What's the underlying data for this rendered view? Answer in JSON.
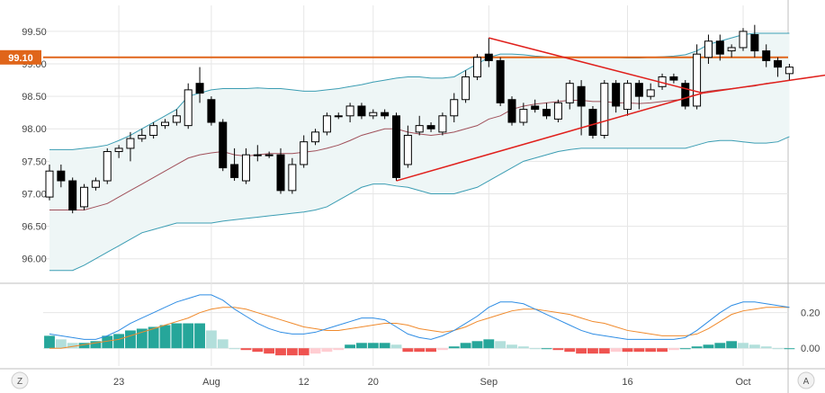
{
  "chart_data": [
    {
      "type": "candlestick",
      "x_ticks": [
        {
          "label": "23",
          "index": 6
        },
        {
          "label": "Aug",
          "index": 14
        },
        {
          "label": "12",
          "index": 22
        },
        {
          "label": "20",
          "index": 28
        },
        {
          "label": "Sep",
          "index": 38
        },
        {
          "label": "16",
          "index": 50
        },
        {
          "label": "Oct",
          "index": 60
        }
      ],
      "y_ticks": [
        "99.50",
        "99.00",
        "98.50",
        "98.00",
        "97.50",
        "97.00",
        "96.50",
        "96.00"
      ],
      "y_tick_values": [
        99.5,
        99.0,
        98.5,
        98.0,
        97.5,
        97.0,
        96.5,
        96.0
      ],
      "ylim": [
        95.65,
        99.9
      ],
      "current_price_label": "99.10",
      "horizontal_level": 99.1,
      "candles": [
        [
          96.95,
          97.35,
          97.45,
          96.9
        ],
        [
          97.35,
          97.2,
          97.45,
          97.1
        ],
        [
          97.2,
          96.75,
          97.25,
          96.7
        ],
        [
          96.8,
          97.1,
          97.15,
          96.75
        ],
        [
          97.1,
          97.2,
          97.25,
          97.05
        ],
        [
          97.2,
          97.65,
          97.7,
          97.15
        ],
        [
          97.65,
          97.7,
          97.75,
          97.55
        ],
        [
          97.7,
          97.85,
          97.95,
          97.5
        ],
        [
          97.85,
          97.9,
          98.0,
          97.8
        ],
        [
          97.9,
          98.05,
          98.1,
          97.85
        ],
        [
          98.05,
          98.1,
          98.15,
          98.0
        ],
        [
          98.1,
          98.2,
          98.3,
          98.05
        ],
        [
          98.05,
          98.6,
          98.7,
          98.0
        ],
        [
          98.7,
          98.55,
          98.95,
          98.4
        ],
        [
          98.45,
          98.1,
          98.5,
          98.05
        ],
        [
          98.1,
          97.4,
          98.15,
          97.35
        ],
        [
          97.45,
          97.25,
          97.7,
          97.2
        ],
        [
          97.2,
          97.6,
          97.7,
          97.15
        ],
        [
          97.6,
          97.6,
          97.75,
          97.5
        ],
        [
          97.6,
          97.6,
          97.65,
          97.55
        ],
        [
          97.6,
          97.05,
          97.7,
          97.0
        ],
        [
          97.05,
          97.45,
          97.55,
          97.0
        ],
        [
          97.45,
          97.8,
          97.9,
          97.4
        ],
        [
          97.8,
          97.95,
          98.0,
          97.75
        ],
        [
          97.95,
          98.2,
          98.25,
          97.9
        ],
        [
          98.2,
          98.2,
          98.25,
          98.15
        ],
        [
          98.2,
          98.35,
          98.4,
          98.1
        ],
        [
          98.35,
          98.2,
          98.4,
          98.15
        ],
        [
          98.2,
          98.25,
          98.3,
          98.15
        ],
        [
          98.25,
          98.2,
          98.3,
          98.15
        ],
        [
          98.2,
          97.25,
          98.25,
          97.2
        ],
        [
          97.45,
          97.9,
          98.05,
          97.4
        ],
        [
          97.95,
          98.05,
          98.2,
          97.9
        ],
        [
          98.05,
          98.0,
          98.1,
          97.95
        ],
        [
          97.95,
          98.2,
          98.25,
          97.9
        ],
        [
          98.2,
          98.45,
          98.55,
          98.1
        ],
        [
          98.45,
          98.8,
          98.9,
          98.4
        ],
        [
          98.8,
          99.1,
          99.15,
          98.75
        ],
        [
          99.15,
          99.05,
          99.4,
          98.95
        ],
        [
          99.05,
          98.4,
          99.1,
          98.35
        ],
        [
          98.45,
          98.1,
          98.5,
          98.05
        ],
        [
          98.1,
          98.3,
          98.4,
          98.05
        ],
        [
          98.35,
          98.3,
          98.45,
          98.25
        ],
        [
          98.3,
          98.2,
          98.4,
          98.15
        ],
        [
          98.15,
          98.4,
          98.45,
          98.1
        ],
        [
          98.4,
          98.7,
          98.75,
          98.3
        ],
        [
          98.65,
          98.35,
          98.75,
          97.9
        ],
        [
          98.3,
          97.9,
          98.35,
          97.85
        ],
        [
          97.9,
          98.7,
          98.75,
          97.85
        ],
        [
          98.7,
          98.35,
          98.75,
          98.25
        ],
        [
          98.3,
          98.7,
          98.75,
          98.2
        ],
        [
          98.7,
          98.5,
          98.75,
          98.3
        ],
        [
          98.5,
          98.6,
          98.7,
          98.45
        ],
        [
          98.65,
          98.8,
          98.85,
          98.6
        ],
        [
          98.8,
          98.75,
          98.85,
          98.7
        ],
        [
          98.7,
          98.35,
          98.75,
          98.3
        ],
        [
          98.35,
          99.15,
          99.3,
          98.3
        ],
        [
          99.1,
          99.35,
          99.45,
          99.0
        ],
        [
          99.35,
          99.15,
          99.45,
          99.05
        ],
        [
          99.2,
          99.25,
          99.3,
          99.1
        ],
        [
          99.25,
          99.5,
          99.55,
          99.2
        ],
        [
          99.45,
          99.2,
          99.6,
          99.1
        ],
        [
          99.2,
          99.05,
          99.3,
          98.95
        ],
        [
          99.05,
          98.95,
          99.1,
          98.8
        ],
        [
          98.85,
          98.95,
          99.0,
          98.75
        ]
      ],
      "bollinger": {
        "upper": [
          97.68,
          97.68,
          97.68,
          97.7,
          97.72,
          97.75,
          97.82,
          97.9,
          98.0,
          98.1,
          98.2,
          98.3,
          98.5,
          98.55,
          98.6,
          98.62,
          98.62,
          98.62,
          98.63,
          98.62,
          98.62,
          98.6,
          98.58,
          98.58,
          98.6,
          98.62,
          98.65,
          98.68,
          98.72,
          98.75,
          98.78,
          98.8,
          98.8,
          98.78,
          98.78,
          98.8,
          98.9,
          99.0,
          99.1,
          99.15,
          99.15,
          99.14,
          99.12,
          99.11,
          99.1,
          99.1,
          99.1,
          99.1,
          99.1,
          99.1,
          99.09,
          99.09,
          99.1,
          99.11,
          99.12,
          99.14,
          99.2,
          99.3,
          99.35,
          99.4,
          99.45,
          99.47,
          99.47,
          99.47,
          99.47
        ],
        "middle": [
          96.75,
          96.75,
          96.75,
          96.75,
          96.8,
          96.85,
          96.95,
          97.05,
          97.15,
          97.25,
          97.35,
          97.45,
          97.55,
          97.6,
          97.63,
          97.65,
          97.6,
          97.58,
          97.6,
          97.62,
          97.62,
          97.62,
          97.64,
          97.66,
          97.7,
          97.75,
          97.82,
          97.9,
          97.95,
          98.0,
          98.0,
          97.95,
          97.92,
          97.9,
          97.92,
          97.95,
          98.0,
          98.05,
          98.15,
          98.2,
          98.3,
          98.35,
          98.38,
          98.4,
          98.42,
          98.44,
          98.44,
          98.42,
          98.42,
          98.4,
          98.4,
          98.39,
          98.4,
          98.42,
          98.44,
          98.46,
          98.55,
          98.58,
          98.6,
          98.62,
          98.64,
          98.66,
          98.7,
          98.72,
          98.75
        ],
        "lower": [
          95.82,
          95.82,
          95.82,
          95.9,
          96.0,
          96.1,
          96.2,
          96.3,
          96.4,
          96.45,
          96.5,
          96.55,
          96.55,
          96.55,
          96.55,
          96.58,
          96.6,
          96.62,
          96.64,
          96.66,
          96.68,
          96.7,
          96.72,
          96.75,
          96.8,
          96.9,
          97.0,
          97.1,
          97.15,
          97.15,
          97.12,
          97.1,
          97.05,
          97.0,
          97.0,
          97.0,
          97.05,
          97.1,
          97.2,
          97.3,
          97.4,
          97.5,
          97.55,
          97.6,
          97.65,
          97.68,
          97.7,
          97.7,
          97.7,
          97.7,
          97.7,
          97.7,
          97.7,
          97.7,
          97.7,
          97.7,
          97.75,
          97.8,
          97.82,
          97.82,
          97.8,
          97.78,
          97.78,
          97.8,
          97.88
        ]
      },
      "annotations": {
        "triangle_upper": [
          [
            38,
            99.4
          ],
          [
            56.5,
            98.55
          ]
        ],
        "triangle_lower": [
          [
            30,
            97.2
          ],
          [
            56.5,
            98.55
          ]
        ],
        "support_extended": [
          [
            56.5,
            98.55
          ],
          [
            68,
            98.85
          ]
        ]
      }
    },
    {
      "type": "bar",
      "y_ticks": [
        "0.20",
        "0.00"
      ],
      "y_tick_values": [
        0.2,
        0.0
      ],
      "ylim": [
        -0.1,
        0.35
      ],
      "histogram": [
        0.07,
        0.05,
        0.03,
        0.03,
        0.04,
        0.07,
        0.08,
        0.1,
        0.11,
        0.12,
        0.13,
        0.14,
        0.14,
        0.14,
        0.1,
        0.05,
        0.0,
        -0.01,
        -0.02,
        -0.03,
        -0.04,
        -0.04,
        -0.04,
        -0.03,
        -0.02,
        -0.01,
        0.02,
        0.03,
        0.03,
        0.03,
        0.02,
        -0.02,
        -0.02,
        -0.02,
        -0.01,
        0.01,
        0.03,
        0.04,
        0.05,
        0.04,
        0.02,
        0.01,
        0.0,
        0.0,
        -0.01,
        -0.02,
        -0.03,
        -0.03,
        -0.03,
        -0.02,
        -0.02,
        -0.02,
        -0.02,
        -0.02,
        -0.01,
        0.0,
        0.01,
        0.02,
        0.03,
        0.04,
        0.03,
        0.02,
        0.01,
        0.0,
        0.0
      ],
      "macd_line": [
        0.08,
        0.07,
        0.06,
        0.05,
        0.05,
        0.07,
        0.1,
        0.14,
        0.17,
        0.2,
        0.23,
        0.26,
        0.28,
        0.3,
        0.3,
        0.27,
        0.22,
        0.18,
        0.14,
        0.11,
        0.09,
        0.08,
        0.08,
        0.09,
        0.11,
        0.13,
        0.15,
        0.17,
        0.17,
        0.16,
        0.12,
        0.08,
        0.06,
        0.05,
        0.07,
        0.1,
        0.14,
        0.18,
        0.23,
        0.26,
        0.26,
        0.25,
        0.22,
        0.19,
        0.16,
        0.13,
        0.1,
        0.08,
        0.07,
        0.06,
        0.05,
        0.05,
        0.05,
        0.05,
        0.05,
        0.06,
        0.1,
        0.15,
        0.2,
        0.24,
        0.26,
        0.26,
        0.25,
        0.24,
        0.23
      ],
      "signal_line": [
        0.0,
        0.0,
        0.01,
        0.02,
        0.03,
        0.04,
        0.05,
        0.07,
        0.09,
        0.11,
        0.13,
        0.15,
        0.17,
        0.2,
        0.22,
        0.23,
        0.23,
        0.22,
        0.2,
        0.18,
        0.16,
        0.14,
        0.12,
        0.11,
        0.1,
        0.1,
        0.11,
        0.12,
        0.13,
        0.14,
        0.14,
        0.13,
        0.11,
        0.1,
        0.09,
        0.1,
        0.12,
        0.15,
        0.17,
        0.19,
        0.21,
        0.22,
        0.22,
        0.21,
        0.2,
        0.19,
        0.17,
        0.15,
        0.14,
        0.12,
        0.1,
        0.09,
        0.08,
        0.07,
        0.07,
        0.07,
        0.08,
        0.11,
        0.15,
        0.19,
        0.21,
        0.22,
        0.23,
        0.23,
        0.23
      ]
    }
  ],
  "colors": {
    "candle_up_fill": "#ffffff",
    "candle_down_fill": "#000000",
    "candle_stroke": "#000000",
    "band_fill": "#eef6f6",
    "band_line": "#3b9db3",
    "middle_line": "#a0505a",
    "level_line": "#e0651a",
    "level_badge": "#e0651a",
    "trendline": "#e0201c",
    "macd_line": "#2f8de4",
    "signal_line": "#f08a2c",
    "hist_pos_strong": "#26a69a",
    "hist_pos_weak": "#b2dfdb",
    "hist_neg_strong": "#ef5350",
    "hist_neg_weak": "#ffcdd2",
    "grid": "#e6e6e6",
    "axis_border": "#bfbfbf"
  },
  "ui": {
    "left_button": "Z",
    "right_button": "A"
  }
}
